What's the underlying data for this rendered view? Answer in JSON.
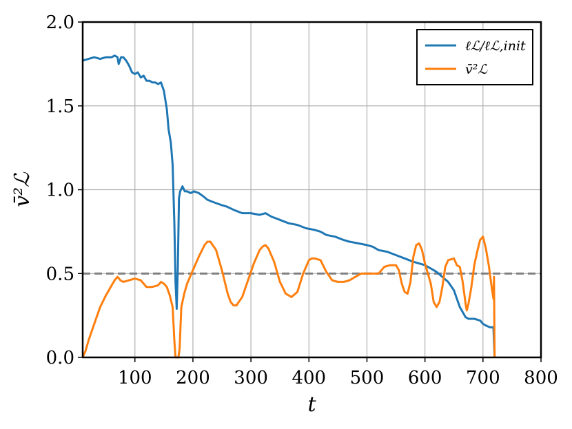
{
  "chart_data": {
    "type": "line",
    "title": "",
    "xlabel": "t",
    "ylabel": "v̄²ℒ",
    "xlim": [
      10,
      800
    ],
    "ylim": [
      0.0,
      2.0
    ],
    "xticks": [
      100,
      200,
      300,
      400,
      500,
      600,
      700,
      800
    ],
    "xtick_labels": [
      "100",
      "200",
      "300",
      "400",
      "500",
      "600",
      "700",
      "800"
    ],
    "yticks": [
      0.0,
      0.5,
      1.0,
      1.5,
      2.0
    ],
    "ytick_labels": [
      "0.0",
      "0.5",
      "1.0",
      "1.5",
      "2.0"
    ],
    "grid": true,
    "legend_position": "top-right",
    "reference_line": {
      "y": 0.5,
      "style": "dashed",
      "color": "#808080"
    },
    "series": [
      {
        "name": "ℓℒ/ℓℒ,init",
        "color": "#1f77b4",
        "points": [
          [
            10,
            1.77
          ],
          [
            20,
            1.78
          ],
          [
            30,
            1.79
          ],
          [
            40,
            1.78
          ],
          [
            50,
            1.79
          ],
          [
            60,
            1.79
          ],
          [
            65,
            1.8
          ],
          [
            70,
            1.79
          ],
          [
            72,
            1.75
          ],
          [
            76,
            1.79
          ],
          [
            80,
            1.79
          ],
          [
            85,
            1.77
          ],
          [
            90,
            1.74
          ],
          [
            95,
            1.7
          ],
          [
            100,
            1.69
          ],
          [
            105,
            1.7
          ],
          [
            110,
            1.67
          ],
          [
            115,
            1.68
          ],
          [
            120,
            1.65
          ],
          [
            125,
            1.65
          ],
          [
            130,
            1.64
          ],
          [
            135,
            1.64
          ],
          [
            140,
            1.63
          ],
          [
            145,
            1.64
          ],
          [
            150,
            1.59
          ],
          [
            155,
            1.48
          ],
          [
            158,
            1.36
          ],
          [
            162,
            1.28
          ],
          [
            165,
            1.15
          ],
          [
            168,
            0.8
          ],
          [
            170,
            0.45
          ],
          [
            172,
            0.29
          ],
          [
            174,
            0.55
          ],
          [
            176,
            0.95
          ],
          [
            178,
            0.99
          ],
          [
            182,
            1.02
          ],
          [
            186,
            0.99
          ],
          [
            190,
            0.99
          ],
          [
            196,
            0.98
          ],
          [
            202,
            0.99
          ],
          [
            210,
            0.98
          ],
          [
            218,
            0.96
          ],
          [
            225,
            0.94
          ],
          [
            232,
            0.93
          ],
          [
            240,
            0.92
          ],
          [
            248,
            0.91
          ],
          [
            258,
            0.9
          ],
          [
            270,
            0.88
          ],
          [
            285,
            0.86
          ],
          [
            300,
            0.86
          ],
          [
            315,
            0.85
          ],
          [
            325,
            0.86
          ],
          [
            335,
            0.84
          ],
          [
            350,
            0.82
          ],
          [
            365,
            0.8
          ],
          [
            380,
            0.79
          ],
          [
            395,
            0.77
          ],
          [
            410,
            0.76
          ],
          [
            420,
            0.75
          ],
          [
            430,
            0.73
          ],
          [
            445,
            0.72
          ],
          [
            460,
            0.7
          ],
          [
            470,
            0.69
          ],
          [
            485,
            0.68
          ],
          [
            500,
            0.67
          ],
          [
            510,
            0.66
          ],
          [
            520,
            0.64
          ],
          [
            535,
            0.63
          ],
          [
            550,
            0.61
          ],
          [
            565,
            0.59
          ],
          [
            580,
            0.57
          ],
          [
            590,
            0.56
          ],
          [
            600,
            0.55
          ],
          [
            610,
            0.53
          ],
          [
            620,
            0.51
          ],
          [
            630,
            0.48
          ],
          [
            640,
            0.45
          ],
          [
            650,
            0.4
          ],
          [
            655,
            0.35
          ],
          [
            660,
            0.3
          ],
          [
            665,
            0.27
          ],
          [
            670,
            0.24
          ],
          [
            675,
            0.23
          ],
          [
            685,
            0.23
          ],
          [
            695,
            0.22
          ],
          [
            700,
            0.2
          ],
          [
            705,
            0.19
          ],
          [
            712,
            0.18
          ],
          [
            718,
            0.18
          ],
          [
            720,
            0.0
          ]
        ]
      },
      {
        "name": "v̄²ℒ",
        "color": "#ff7f0e",
        "points": [
          [
            10,
            0.0
          ],
          [
            15,
            0.04
          ],
          [
            20,
            0.1
          ],
          [
            30,
            0.2
          ],
          [
            40,
            0.3
          ],
          [
            50,
            0.37
          ],
          [
            60,
            0.43
          ],
          [
            65,
            0.46
          ],
          [
            70,
            0.48
          ],
          [
            75,
            0.46
          ],
          [
            80,
            0.45
          ],
          [
            90,
            0.46
          ],
          [
            100,
            0.47
          ],
          [
            110,
            0.46
          ],
          [
            115,
            0.44
          ],
          [
            120,
            0.42
          ],
          [
            130,
            0.42
          ],
          [
            140,
            0.43
          ],
          [
            145,
            0.45
          ],
          [
            150,
            0.44
          ],
          [
            155,
            0.42
          ],
          [
            160,
            0.37
          ],
          [
            165,
            0.3
          ],
          [
            168,
            0.1
          ],
          [
            170,
            0.0
          ],
          [
            172,
            0.0
          ],
          [
            175,
            0.0
          ],
          [
            177,
            0.05
          ],
          [
            180,
            0.3
          ],
          [
            185,
            0.38
          ],
          [
            190,
            0.44
          ],
          [
            200,
            0.52
          ],
          [
            210,
            0.6
          ],
          [
            220,
            0.67
          ],
          [
            225,
            0.69
          ],
          [
            230,
            0.69
          ],
          [
            240,
            0.64
          ],
          [
            250,
            0.52
          ],
          [
            260,
            0.38
          ],
          [
            265,
            0.33
          ],
          [
            270,
            0.31
          ],
          [
            275,
            0.31
          ],
          [
            285,
            0.36
          ],
          [
            295,
            0.46
          ],
          [
            305,
            0.56
          ],
          [
            315,
            0.64
          ],
          [
            320,
            0.66
          ],
          [
            325,
            0.67
          ],
          [
            330,
            0.65
          ],
          [
            340,
            0.57
          ],
          [
            350,
            0.45
          ],
          [
            360,
            0.38
          ],
          [
            370,
            0.36
          ],
          [
            380,
            0.39
          ],
          [
            390,
            0.5
          ],
          [
            400,
            0.58
          ],
          [
            405,
            0.59
          ],
          [
            410,
            0.59
          ],
          [
            420,
            0.58
          ],
          [
            430,
            0.51
          ],
          [
            440,
            0.46
          ],
          [
            450,
            0.45
          ],
          [
            460,
            0.45
          ],
          [
            470,
            0.46
          ],
          [
            480,
            0.48
          ],
          [
            490,
            0.5
          ],
          [
            500,
            0.5
          ],
          [
            510,
            0.5
          ],
          [
            520,
            0.5
          ],
          [
            530,
            0.54
          ],
          [
            540,
            0.55
          ],
          [
            550,
            0.55
          ],
          [
            555,
            0.52
          ],
          [
            560,
            0.44
          ],
          [
            565,
            0.39
          ],
          [
            570,
            0.38
          ],
          [
            575,
            0.45
          ],
          [
            580,
            0.6
          ],
          [
            585,
            0.67
          ],
          [
            590,
            0.68
          ],
          [
            595,
            0.64
          ],
          [
            600,
            0.56
          ],
          [
            610,
            0.44
          ],
          [
            615,
            0.33
          ],
          [
            620,
            0.3
          ],
          [
            625,
            0.33
          ],
          [
            630,
            0.42
          ],
          [
            635,
            0.54
          ],
          [
            640,
            0.58
          ],
          [
            650,
            0.59
          ],
          [
            655,
            0.55
          ],
          [
            660,
            0.54
          ],
          [
            665,
            0.45
          ],
          [
            670,
            0.32
          ],
          [
            672,
            0.28
          ],
          [
            675,
            0.32
          ],
          [
            680,
            0.42
          ],
          [
            685,
            0.55
          ],
          [
            690,
            0.63
          ],
          [
            695,
            0.7
          ],
          [
            700,
            0.72
          ],
          [
            705,
            0.65
          ],
          [
            710,
            0.55
          ],
          [
            715,
            0.42
          ],
          [
            718,
            0.35
          ],
          [
            719,
            0.48
          ],
          [
            720,
            0.0
          ]
        ]
      }
    ]
  }
}
